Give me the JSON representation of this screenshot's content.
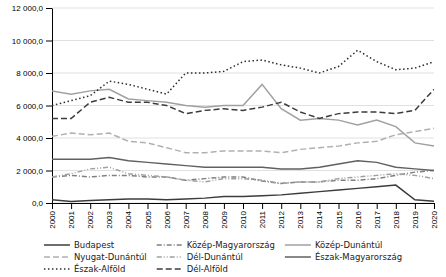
{
  "chart_data": {
    "type": "line",
    "x": [
      2000,
      2001,
      2002,
      2003,
      2004,
      2005,
      2006,
      2007,
      2008,
      2009,
      2010,
      2011,
      2012,
      2013,
      2014,
      2015,
      2016,
      2017,
      2018,
      2019,
      2020
    ],
    "xlim": [
      2000,
      2020
    ],
    "xticks": [
      2000,
      2001,
      2002,
      2003,
      2004,
      2005,
      2006,
      2007,
      2008,
      2009,
      2010,
      2011,
      2012,
      2013,
      2014,
      2015,
      2016,
      2017,
      2018,
      2019,
      2020
    ],
    "ylim": [
      0,
      12000
    ],
    "yticks": [
      {
        "value": 0,
        "label": "0,0"
      },
      {
        "value": 2000,
        "label": "2 000,0"
      },
      {
        "value": 4000,
        "label": "4 000,0"
      },
      {
        "value": 6000,
        "label": "6 000,0"
      },
      {
        "value": 8000,
        "label": "8 000,0"
      },
      {
        "value": 10000,
        "label": "10 000,0"
      },
      {
        "value": 12000,
        "label": "12 000,0"
      }
    ],
    "grid": true,
    "legend": "bottom",
    "series": [
      {
        "name": "Budapest",
        "color": "#3c3c3c",
        "line_style": "solid",
        "values": [
          200,
          100,
          150,
          200,
          250,
          250,
          200,
          250,
          300,
          400,
          400,
          450,
          500,
          600,
          700,
          800,
          900,
          1000,
          1100,
          200,
          100
        ]
      },
      {
        "name": "Közép-Magyarország",
        "color": "#808080",
        "line_style": "dashdot",
        "values": [
          1600,
          1700,
          1600,
          1700,
          1700,
          1600,
          1600,
          1400,
          1500,
          1600,
          1600,
          1350,
          1200,
          1300,
          1300,
          1400,
          1400,
          1500,
          1700,
          1900,
          2000
        ]
      },
      {
        "name": "Közép-Dunántúl",
        "color": "#a0a0a0",
        "line_style": "solid",
        "values": [
          6900,
          6700,
          6900,
          7000,
          6400,
          6300,
          6200,
          6000,
          5900,
          6000,
          6000,
          7300,
          5800,
          5100,
          5200,
          5100,
          4800,
          5100,
          4700,
          3700,
          3500
        ]
      },
      {
        "name": "Nyugat-Dunántúl",
        "color": "#b0b0b0",
        "line_style": "dashed",
        "values": [
          4100,
          4300,
          4200,
          4300,
          3800,
          3700,
          3400,
          3100,
          3100,
          3200,
          3200,
          3200,
          3100,
          3300,
          3400,
          3500,
          3700,
          3800,
          4200,
          4400,
          4600
        ]
      },
      {
        "name": "Dél-Dunántúl",
        "color": "#a0a0a0",
        "line_style": "dashdotdot",
        "values": [
          1600,
          1800,
          2100,
          2200,
          1800,
          1700,
          1600,
          1400,
          1300,
          1500,
          1500,
          1400,
          1200,
          1300,
          1300,
          1500,
          1600,
          1700,
          1800,
          1700,
          1500
        ]
      },
      {
        "name": "Észak-Magyarország",
        "color": "#606060",
        "line_style": "solid",
        "values": [
          2700,
          2700,
          2700,
          2800,
          2600,
          2500,
          2400,
          2300,
          2200,
          2200,
          2200,
          2200,
          2100,
          2100,
          2200,
          2400,
          2600,
          2500,
          2200,
          2100,
          2000
        ]
      },
      {
        "name": "Észak-Alföld",
        "color": "#2c2c2c",
        "line_style": "dotted",
        "values": [
          6000,
          6300,
          6600,
          7500,
          7300,
          7000,
          6700,
          8000,
          8000,
          8100,
          8700,
          8800,
          8500,
          8300,
          8000,
          8400,
          9400,
          8700,
          8200,
          8300,
          8700
        ]
      },
      {
        "name": "Dél-Alföld",
        "color": "#3c3c3c",
        "line_style": "dashed",
        "values": [
          5200,
          5200,
          6200,
          6500,
          6200,
          6200,
          6000,
          5500,
          5700,
          5800,
          5700,
          5900,
          6200,
          5600,
          5200,
          5500,
          5600,
          5600,
          5500,
          5700,
          7000
        ]
      }
    ]
  }
}
